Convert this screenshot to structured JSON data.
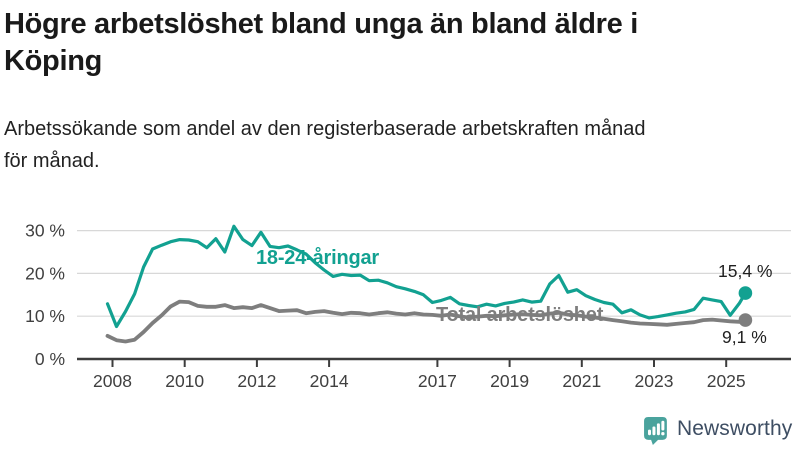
{
  "chart_data": {
    "type": "line",
    "title": "Högre arbetslöshet bland unga än bland äldre i\nKöping",
    "subtitle": "Arbetssökande som andel av den registerbaserade arbetskraften månad\nför månad.",
    "xlabel": "",
    "ylabel": "",
    "x_tick_labels": [
      "2008",
      "2010",
      "2012",
      "2014",
      "2017",
      "2019",
      "2021",
      "2023",
      "2025"
    ],
    "x_tick_years": [
      2008,
      2010,
      2012,
      2014,
      2017,
      2019,
      2021,
      2023,
      2025
    ],
    "y_tick_labels": [
      "0 %",
      "10 %",
      "20 %",
      "30 %"
    ],
    "y_ticks": [
      0,
      10,
      20,
      30
    ],
    "ylim": [
      0,
      33
    ],
    "xlim": [
      2007.9,
      2026.1
    ],
    "grid": "horizontal",
    "legend": "inline-labels",
    "axis_color": "#3d3d3d",
    "grid_color": "#d8d8d8",
    "tick_label_color": "#404040",
    "x": [
      2008,
      2008.25,
      2008.5,
      2008.75,
      2009,
      2009.25,
      2009.5,
      2009.75,
      2010,
      2010.25,
      2010.5,
      2010.75,
      2011,
      2011.25,
      2011.5,
      2011.75,
      2012,
      2012.25,
      2012.5,
      2012.75,
      2013,
      2013.25,
      2013.5,
      2013.75,
      2014,
      2014.25,
      2014.5,
      2014.75,
      2015,
      2015.25,
      2015.5,
      2015.75,
      2016,
      2016.25,
      2016.5,
      2016.75,
      2017,
      2017.25,
      2017.5,
      2017.75,
      2018,
      2018.25,
      2018.5,
      2018.75,
      2019,
      2019.25,
      2019.5,
      2019.75,
      2020,
      2020.25,
      2020.5,
      2020.75,
      2021,
      2021.25,
      2021.5,
      2021.75,
      2022,
      2022.25,
      2022.5,
      2022.75,
      2023,
      2023.25,
      2023.5,
      2023.75,
      2024,
      2024.25,
      2024.5,
      2024.75,
      2025,
      2025.25,
      2025.5,
      2025.67
    ],
    "series": [
      {
        "name": "18-24-åringar",
        "color": "#12a191",
        "end_label": "15,4 %",
        "end_value": 15.4,
        "values": [
          12.9,
          7.6,
          11.1,
          15.2,
          21.5,
          25.7,
          26.6,
          27.4,
          27.9,
          27.8,
          27.4,
          26.0,
          28.1,
          25.0,
          31.0,
          27.9,
          26.5,
          29.6,
          26.3,
          26.0,
          26.4,
          25.5,
          24.5,
          22.5,
          20.8,
          19.3,
          19.8,
          19.5,
          19.6,
          18.3,
          18.4,
          17.8,
          16.9,
          16.4,
          15.8,
          15.0,
          13.2,
          13.7,
          14.4,
          12.9,
          12.5,
          12.2,
          12.8,
          12.4,
          13.0,
          13.3,
          13.8,
          13.3,
          13.5,
          17.5,
          19.5,
          15.6,
          16.2,
          14.8,
          13.9,
          13.2,
          12.8,
          10.8,
          11.5,
          10.3,
          9.6,
          9.9,
          10.3,
          10.7,
          11.0,
          11.6,
          14.2,
          13.8,
          13.4,
          10.2,
          13.0,
          15.4
        ]
      },
      {
        "name": "Total arbetslöshet",
        "color": "#7e7e7e",
        "end_label": "9,1 %",
        "end_value": 9.1,
        "values": [
          5.4,
          4.4,
          4.1,
          4.5,
          6.3,
          8.4,
          10.2,
          12.3,
          13.4,
          13.3,
          12.4,
          12.2,
          12.2,
          12.6,
          11.9,
          12.1,
          11.9,
          12.6,
          11.9,
          11.2,
          11.3,
          11.4,
          10.7,
          11.0,
          11.2,
          10.8,
          10.5,
          10.8,
          10.7,
          10.4,
          10.7,
          10.9,
          10.6,
          10.4,
          10.7,
          10.4,
          10.3,
          10.1,
          10.4,
          10.0,
          9.7,
          9.9,
          10.1,
          10.0,
          10.2,
          10.4,
          10.5,
          10.3,
          10.2,
          10.6,
          10.8,
          10.4,
          10.2,
          9.9,
          9.7,
          9.4,
          9.1,
          8.8,
          8.5,
          8.3,
          8.2,
          8.1,
          8.0,
          8.2,
          8.4,
          8.6,
          9.1,
          9.2,
          9.0,
          8.8,
          8.7,
          9.1
        ]
      }
    ]
  },
  "footer": {
    "brand": "Newsworthy",
    "brand_color": "#3e4e63",
    "icon_color": "#4aa39d"
  }
}
